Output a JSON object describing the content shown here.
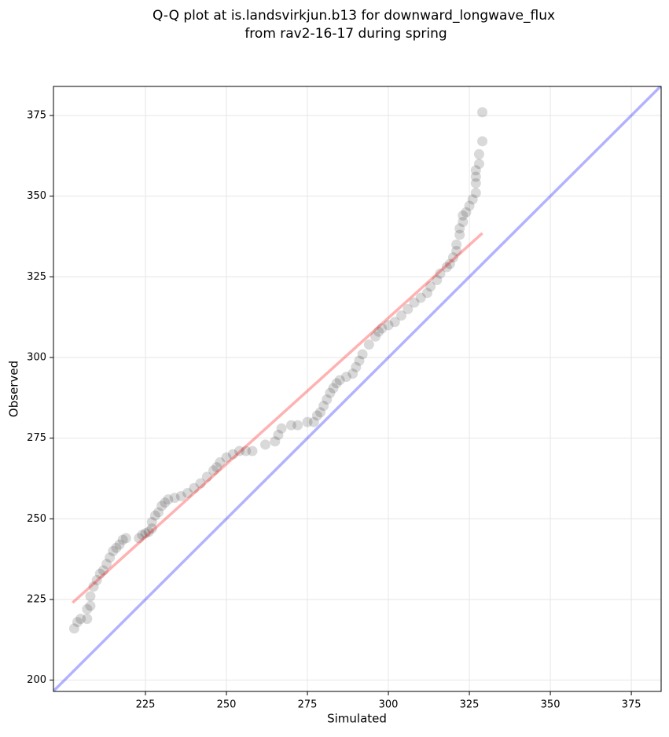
{
  "chart_data": {
    "type": "scatter",
    "title": [
      "Q-Q plot at is.landsvirkjun.b13 for downward_longwave_flux",
      "from rav2-16-17 during spring"
    ],
    "xlabel": "Simulated",
    "ylabel": "Observed",
    "xlim": [
      196.6,
      384.2
    ],
    "ylim": [
      196.5,
      384
    ],
    "xticks": [
      225,
      250,
      275,
      300,
      325,
      350,
      375
    ],
    "yticks": [
      200,
      225,
      250,
      275,
      300,
      325,
      350,
      375
    ],
    "grid": true,
    "color": "#000000",
    "x": [
      203,
      204,
      205,
      207,
      207,
      208,
      208,
      209,
      210,
      211,
      212,
      213,
      214,
      215,
      216,
      217,
      218,
      219,
      223,
      224,
      225,
      226,
      227,
      227,
      228,
      229,
      230,
      231,
      232,
      234,
      236,
      238,
      240,
      242,
      244,
      246,
      247,
      248,
      250,
      252,
      254,
      256,
      258,
      262,
      265,
      266,
      267,
      270,
      272,
      275,
      277,
      278,
      279,
      280,
      281,
      282,
      283,
      284,
      285,
      287,
      289,
      290,
      291,
      292,
      294,
      296,
      297,
      298,
      300,
      302,
      304,
      306,
      308,
      310,
      312,
      313,
      315,
      316,
      318,
      319,
      320,
      321,
      321,
      322,
      322,
      323,
      323,
      324,
      325,
      326,
      327,
      327,
      327,
      327,
      328,
      328,
      329,
      329
    ],
    "values": [
      216,
      218,
      219,
      219,
      222,
      223,
      226,
      229,
      231,
      233,
      234,
      236,
      238,
      240,
      241,
      242,
      243.5,
      244,
      244,
      245,
      245.5,
      246,
      247,
      249,
      251,
      252,
      254,
      255,
      256,
      256.5,
      257,
      258,
      259.5,
      261,
      263,
      265,
      266,
      267.5,
      269,
      270,
      271,
      271,
      271,
      273,
      274,
      276,
      278,
      279,
      279,
      280,
      280,
      282,
      283,
      285,
      287,
      289,
      290.5,
      292,
      293,
      294,
      295,
      297,
      299,
      301,
      304,
      306.5,
      308,
      309,
      310,
      311,
      313,
      315,
      317,
      318.5,
      320,
      322,
      324,
      326,
      328,
      329,
      331,
      333,
      335,
      338,
      340,
      342,
      344,
      345,
      347,
      349,
      351,
      354,
      356,
      358,
      360,
      363,
      367,
      376
    ],
    "fit_line": {
      "color": "#ff0000",
      "x": [
        202.5,
        329
      ],
      "values": [
        224,
        338.5
      ]
    },
    "identity_line": {
      "color": "#0000ff",
      "x": [
        196.6,
        384.2
      ],
      "values": [
        196.6,
        384.2
      ]
    }
  }
}
